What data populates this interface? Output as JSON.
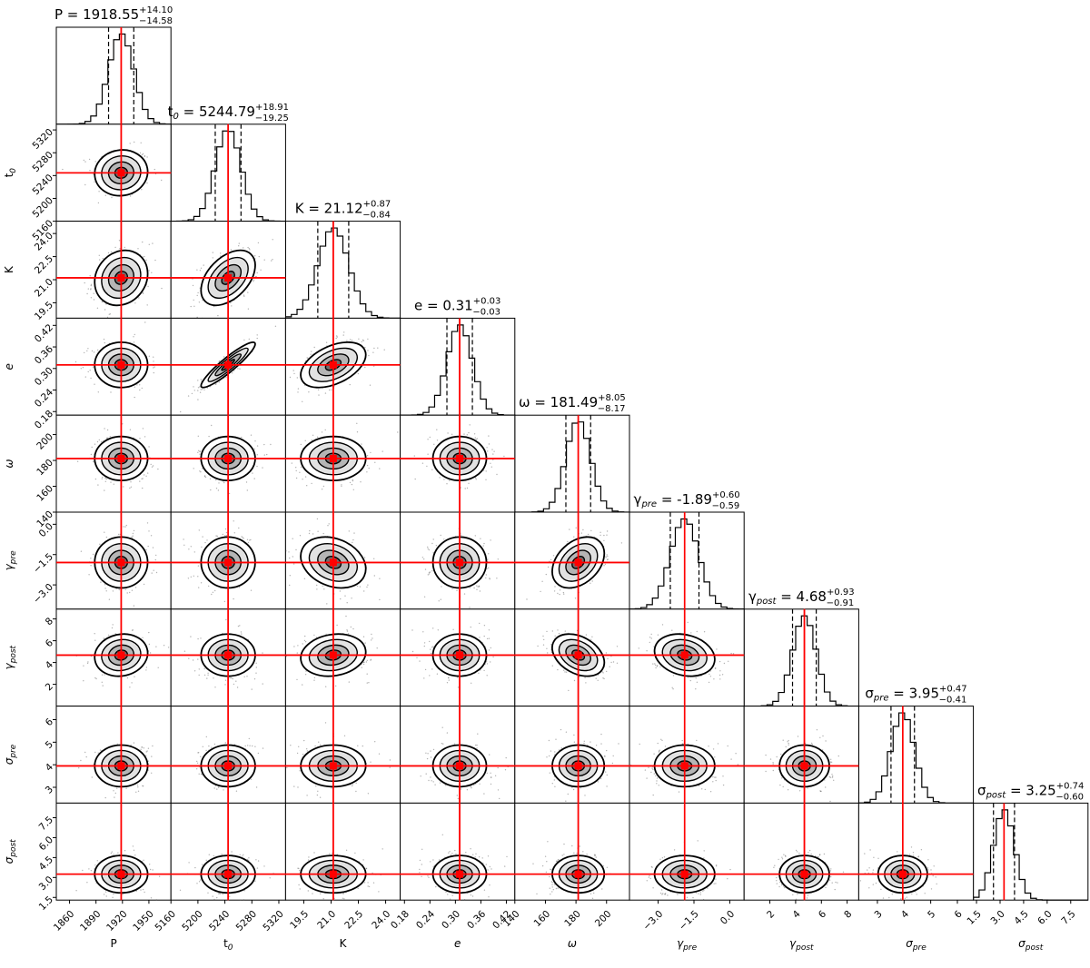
{
  "chart_data": {
    "type": "corner",
    "params": [
      {
        "key": "P",
        "label": "P",
        "title_lhs": "P",
        "median": 1918.55,
        "plus": "+14.10",
        "minus": "−14.58",
        "center": 1918.55,
        "sigma": 14.3,
        "range": [
          1845,
          1975
        ],
        "ticks": [
          1860,
          1890,
          1920,
          1950
        ],
        "tick_labels": [
          "1860",
          "1890",
          "1920",
          "1950"
        ],
        "dec": 2
      },
      {
        "key": "t0",
        "label": "t",
        "sub": "0",
        "title_lhs": "t",
        "median": 5244.79,
        "plus": "+18.91",
        "minus": "−19.25",
        "center": 5244.79,
        "sigma": 19.1,
        "range": [
          5160,
          5330
        ],
        "ticks": [
          5160,
          5200,
          5240,
          5280,
          5320
        ],
        "tick_labels": [
          "5160",
          "5200",
          "5240",
          "5280",
          "5320"
        ],
        "dec": 2
      },
      {
        "key": "K",
        "label": "K",
        "title_lhs": "K",
        "median": 21.12,
        "plus": "+0.87",
        "minus": "−0.84",
        "center": 21.12,
        "sigma": 0.85,
        "range": [
          18.5,
          24.8
        ],
        "ticks": [
          19.5,
          21.0,
          22.5,
          24.0
        ],
        "tick_labels": [
          "19.5",
          "21.0",
          "22.5",
          "24.0"
        ],
        "dec": 2
      },
      {
        "key": "e",
        "label": "e",
        "title_lhs": "e",
        "median": 0.31,
        "plus": "+0.03",
        "minus": "−0.03",
        "center": 0.31,
        "sigma": 0.03,
        "range": [
          0.17,
          0.44
        ],
        "ticks": [
          0.18,
          0.24,
          0.3,
          0.36,
          0.42
        ],
        "tick_labels": [
          "0.18",
          "0.24",
          "0.30",
          "0.36",
          "0.42"
        ],
        "dec": 2
      },
      {
        "key": "omega",
        "label": "ω",
        "title_lhs": "ω",
        "median": 181.49,
        "plus": "+8.05",
        "minus": "−8.17",
        "center": 181.49,
        "sigma": 8.1,
        "range": [
          140,
          215
        ],
        "ticks": [
          140,
          160,
          180,
          200
        ],
        "tick_labels": [
          "140",
          "160",
          "180",
          "200"
        ],
        "dec": 2
      },
      {
        "key": "gpre",
        "label": "γ",
        "sub": "pre",
        "title_lhs": "γ",
        "median": -1.89,
        "plus": "+0.60",
        "minus": "−0.59",
        "center": -1.89,
        "sigma": 0.6,
        "range": [
          -4.2,
          0.6
        ],
        "ticks": [
          -3.0,
          -1.5,
          0.0
        ],
        "tick_labels": [
          "−3.0",
          "−1.5",
          "0.0"
        ],
        "dec": 2
      },
      {
        "key": "gpost",
        "label": "γ",
        "sub": "post",
        "title_lhs": "γ",
        "median": 4.68,
        "plus": "+0.93",
        "minus": "−0.91",
        "center": 4.68,
        "sigma": 0.92,
        "range": [
          0,
          8.9
        ],
        "ticks": [
          2,
          4,
          6,
          8
        ],
        "tick_labels": [
          "2",
          "4",
          "6",
          "8"
        ],
        "dec": 2
      },
      {
        "key": "spre",
        "label": "σ",
        "sub": "pre",
        "title_lhs": "σ",
        "median": 3.95,
        "plus": "+0.47",
        "minus": "−0.41",
        "center": 3.95,
        "sigma": 0.44,
        "range": [
          2.3,
          6.6
        ],
        "ticks": [
          3,
          4,
          5,
          6
        ],
        "tick_labels": [
          "3",
          "4",
          "5",
          "6"
        ],
        "dec": 2
      },
      {
        "key": "spost",
        "label": "σ",
        "sub": "post",
        "title_lhs": "σ",
        "median": 3.25,
        "plus": "+0.74",
        "minus": "−0.60",
        "center": 3.25,
        "sigma": 0.67,
        "range": [
          1.3,
          8.6
        ],
        "ticks": [
          1.5,
          3.0,
          4.5,
          6.0,
          7.5
        ],
        "tick_labels": [
          "1.5",
          "3.0",
          "4.5",
          "6.0",
          "7.5"
        ],
        "dec": 2
      }
    ],
    "correlations": {
      "t0|e": 0.92,
      "P|t0": 0.05,
      "P|K": 0.15,
      "t0|K": 0.45,
      "K|e": 0.45,
      "omega|gpre": 0.35,
      "K|gpre": -0.25,
      "omega|gpost": -0.35,
      "gpre|gpost": -0.2,
      "P|gpost": 0.1,
      "K|gpost": 0.15
    },
    "truth_line_color": "#ff0000",
    "hist_color": "#000000",
    "quantiles": [
      0.16,
      0.5,
      0.84
    ]
  }
}
